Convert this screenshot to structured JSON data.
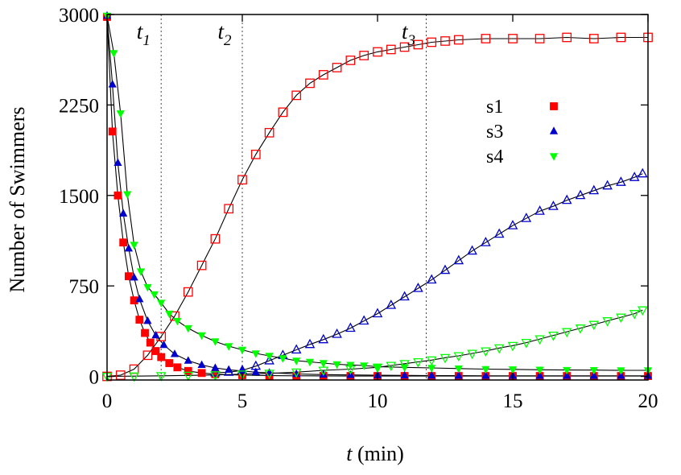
{
  "chart_data": {
    "type": "scatter",
    "xlabel": "t (min)",
    "xlabel_parts": {
      "var": "t",
      "unit": "(min)"
    },
    "ylabel": "Number of Swimmers",
    "xlim": [
      0,
      20
    ],
    "ylim": [
      -30,
      3000
    ],
    "xticks": [
      0,
      5,
      10,
      15,
      20
    ],
    "yticks": [
      0,
      750,
      1500,
      2250,
      3000
    ],
    "grid": false,
    "legend_position": "top-right",
    "legend": [
      {
        "name": "s1",
        "color": "#ff0000",
        "marker": "square"
      },
      {
        "name": "s3",
        "color": "#0000cc",
        "marker": "triangle-up"
      },
      {
        "name": "s4",
        "color": "#00ff00",
        "marker": "triangle-down"
      }
    ],
    "annotations": [
      {
        "label": "t",
        "sub": "1",
        "x": 2.0
      },
      {
        "label": "t",
        "sub": "2",
        "x": 5.0
      },
      {
        "label": "t",
        "sub": "3",
        "x": 11.8
      }
    ],
    "series": [
      {
        "name": "s1",
        "variant": "filled",
        "marker": "square",
        "color": "#ff0000",
        "x": [
          0,
          0.2,
          0.4,
          0.6,
          0.8,
          1.0,
          1.2,
          1.4,
          1.6,
          1.8,
          2.0,
          2.3,
          2.6,
          3.0,
          3.5,
          4.0,
          5.0,
          6.0,
          7.0,
          8.0,
          9.0,
          10.0,
          11.0,
          12.0,
          13.0,
          14.0,
          15.0,
          16.0,
          17.0,
          18.0,
          19.0,
          20.0
        ],
        "y": [
          2980,
          2030,
          1500,
          1110,
          830,
          630,
          470,
          360,
          280,
          210,
          160,
          110,
          75,
          45,
          28,
          18,
          10,
          6,
          5,
          4,
          3,
          3,
          3,
          3,
          3,
          3,
          3,
          3,
          3,
          3,
          3,
          3
        ]
      },
      {
        "name": "s1",
        "variant": "open",
        "marker": "square",
        "color": "#ff0000",
        "x": [
          0,
          0.5,
          1.0,
          1.5,
          2.0,
          2.5,
          3.0,
          3.5,
          4.0,
          4.5,
          5.0,
          5.5,
          6.0,
          6.5,
          7.0,
          7.5,
          8.0,
          8.5,
          9.0,
          9.5,
          10.0,
          10.5,
          11.0,
          11.5,
          12.0,
          12.5,
          13.0,
          14.0,
          15.0,
          16.0,
          17.0,
          18.0,
          19.0,
          20.0
        ],
        "y": [
          0,
          10,
          60,
          175,
          330,
          500,
          700,
          920,
          1140,
          1390,
          1630,
          1840,
          2020,
          2190,
          2330,
          2430,
          2500,
          2560,
          2620,
          2660,
          2690,
          2710,
          2730,
          2750,
          2770,
          2780,
          2790,
          2800,
          2800,
          2800,
          2810,
          2800,
          2810,
          2810
        ]
      },
      {
        "name": "s3",
        "variant": "filled",
        "marker": "triangle-up",
        "color": "#0000cc",
        "x": [
          0,
          0.2,
          0.4,
          0.6,
          0.8,
          1.0,
          1.2,
          1.5,
          1.8,
          2.1,
          2.5,
          3.0,
          3.5,
          4.0,
          4.5,
          5.0,
          5.5,
          6.0,
          7.0,
          8.0,
          9.0,
          10.0,
          11.0,
          12.0,
          13.0,
          14.0,
          15.0,
          16.0,
          17.0,
          18.0,
          19.0,
          20.0
        ],
        "y": [
          2990,
          2420,
          1770,
          1350,
          1060,
          820,
          640,
          460,
          340,
          260,
          185,
          130,
          95,
          70,
          55,
          45,
          35,
          30,
          20,
          15,
          12,
          10,
          8,
          7,
          6,
          5,
          5,
          5,
          5,
          5,
          5,
          5
        ]
      },
      {
        "name": "s3",
        "variant": "open",
        "marker": "triangle-up",
        "color": "#0000cc",
        "x": [
          4.0,
          4.5,
          5.0,
          5.5,
          6.0,
          6.5,
          7.0,
          7.5,
          8.0,
          8.5,
          9.0,
          9.5,
          10.0,
          10.5,
          11.0,
          11.5,
          12.0,
          12.5,
          13.0,
          13.5,
          14.0,
          14.5,
          15.0,
          15.5,
          16.0,
          16.5,
          17.0,
          17.5,
          18.0,
          18.5,
          19.0,
          19.5,
          19.8
        ],
        "y": [
          30,
          35,
          50,
          85,
          130,
          175,
          220,
          265,
          305,
          350,
          400,
          460,
          520,
          590,
          660,
          730,
          800,
          880,
          960,
          1040,
          1110,
          1180,
          1250,
          1310,
          1370,
          1410,
          1460,
          1500,
          1540,
          1580,
          1610,
          1650,
          1680
        ]
      },
      {
        "name": "s4",
        "variant": "filled",
        "marker": "triangle-down",
        "color": "#00ff00",
        "x": [
          0,
          0.25,
          0.5,
          0.75,
          1.0,
          1.25,
          1.5,
          1.75,
          2.0,
          2.3,
          2.6,
          3.0,
          3.5,
          4.0,
          4.5,
          5.0,
          5.5,
          6.0,
          6.5,
          7.0,
          7.5,
          8.0,
          8.5,
          9.0,
          9.5,
          10.0,
          11.0,
          12.0,
          13.0,
          14.0,
          15.0,
          16.0,
          17.0,
          18.0,
          19.0,
          20.0
        ],
        "y": [
          2990,
          2680,
          2180,
          1510,
          1090,
          870,
          740,
          680,
          610,
          520,
          460,
          400,
          340,
          290,
          250,
          220,
          190,
          170,
          150,
          130,
          120,
          110,
          100,
          95,
          90,
          80,
          75,
          70,
          65,
          60,
          58,
          55,
          53,
          52,
          50,
          50
        ]
      },
      {
        "name": "s4",
        "variant": "open",
        "marker": "triangle-down",
        "color": "#00ff00",
        "x": [
          0,
          1,
          2,
          3,
          4,
          5,
          6,
          7,
          8,
          9,
          10,
          10.5,
          11.0,
          11.5,
          12.0,
          12.5,
          13.0,
          13.5,
          14.0,
          14.5,
          15.0,
          15.5,
          16.0,
          16.5,
          17.0,
          17.5,
          18.0,
          18.5,
          19.0,
          19.5,
          19.8
        ],
        "y": [
          0,
          2,
          5,
          8,
          12,
          18,
          25,
          35,
          50,
          60,
          75,
          90,
          105,
          120,
          135,
          155,
          170,
          190,
          210,
          235,
          255,
          280,
          310,
          340,
          370,
          400,
          430,
          460,
          490,
          520,
          550
        ]
      }
    ]
  }
}
